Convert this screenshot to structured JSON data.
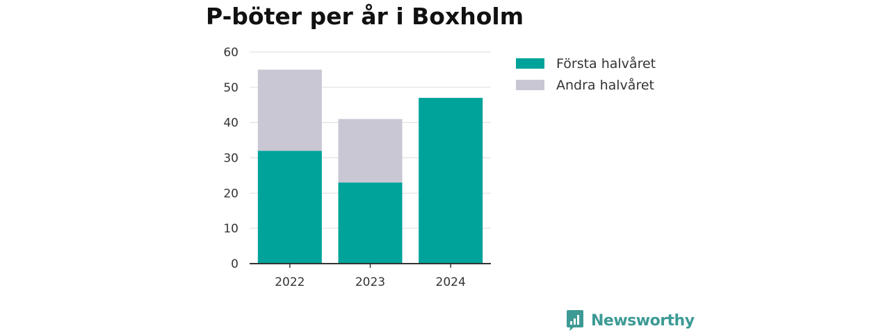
{
  "chart_data": {
    "type": "bar",
    "stacked": true,
    "title": "P-böter per år i Boxholm",
    "categories": [
      "2022",
      "2023",
      "2024"
    ],
    "series": [
      {
        "name": "Första halvåret",
        "values": [
          32,
          23,
          47
        ],
        "color": "#00a39a"
      },
      {
        "name": "Andra halvåret",
        "values": [
          23,
          18,
          0
        ],
        "color": "#c8c7d3"
      }
    ],
    "xlabel": "",
    "ylabel": "",
    "ylim": [
      0,
      60
    ],
    "yticks": [
      0,
      10,
      20,
      30,
      40,
      50,
      60
    ],
    "grid": true,
    "legend_position": "right"
  },
  "legend": {
    "items": [
      {
        "label": "Första halvåret",
        "color": "#00a39a"
      },
      {
        "label": "Andra halvåret",
        "color": "#c8c7d3"
      }
    ]
  },
  "brand": {
    "name": "Newsworthy",
    "icon": "bar-chart-icon",
    "color": "#3d9a95"
  }
}
